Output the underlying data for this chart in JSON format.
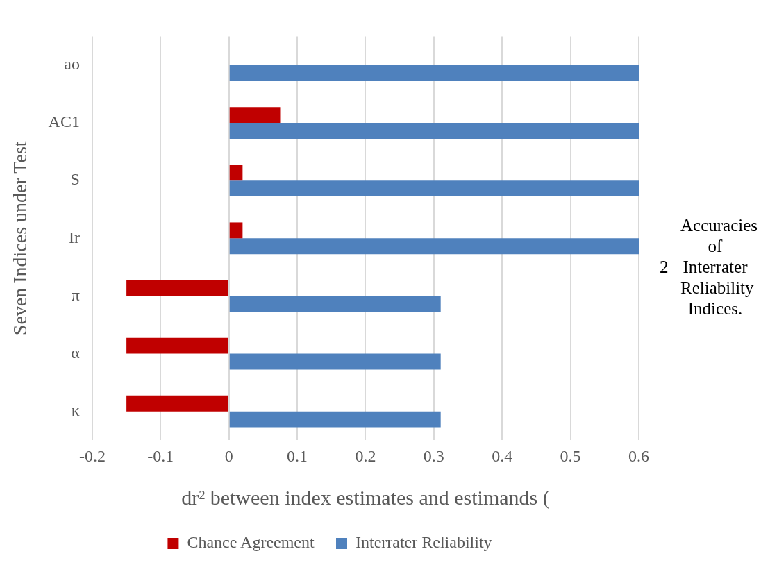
{
  "chart_data": {
    "type": "bar",
    "orientation": "horizontal",
    "categories": [
      "ao",
      "AC1",
      "S",
      "Ir",
      "π",
      "α",
      "κ"
    ],
    "series": [
      {
        "name": "Chance Agreement",
        "color": "#c00000",
        "values": [
          null,
          0.075,
          0.02,
          0.02,
          -0.15,
          -0.15,
          -0.15
        ]
      },
      {
        "name": "Interrater Reliability",
        "color": "#4f81bd",
        "values": [
          0.6,
          0.6,
          0.6,
          0.6,
          0.31,
          0.31,
          0.31
        ]
      }
    ],
    "xlim": [
      -0.2,
      0.6
    ],
    "xticks": [
      -0.2,
      -0.1,
      0,
      0.1,
      0.2,
      0.3,
      0.4,
      0.5,
      0.6
    ],
    "xlabel": "dr² between index estimates and estimands (",
    "ylabel": "Seven Indices under Test",
    "grid": "x",
    "legend": "bottom",
    "annotations": [
      "2",
      "Accuracies of Interrater Reliability Indices."
    ]
  }
}
